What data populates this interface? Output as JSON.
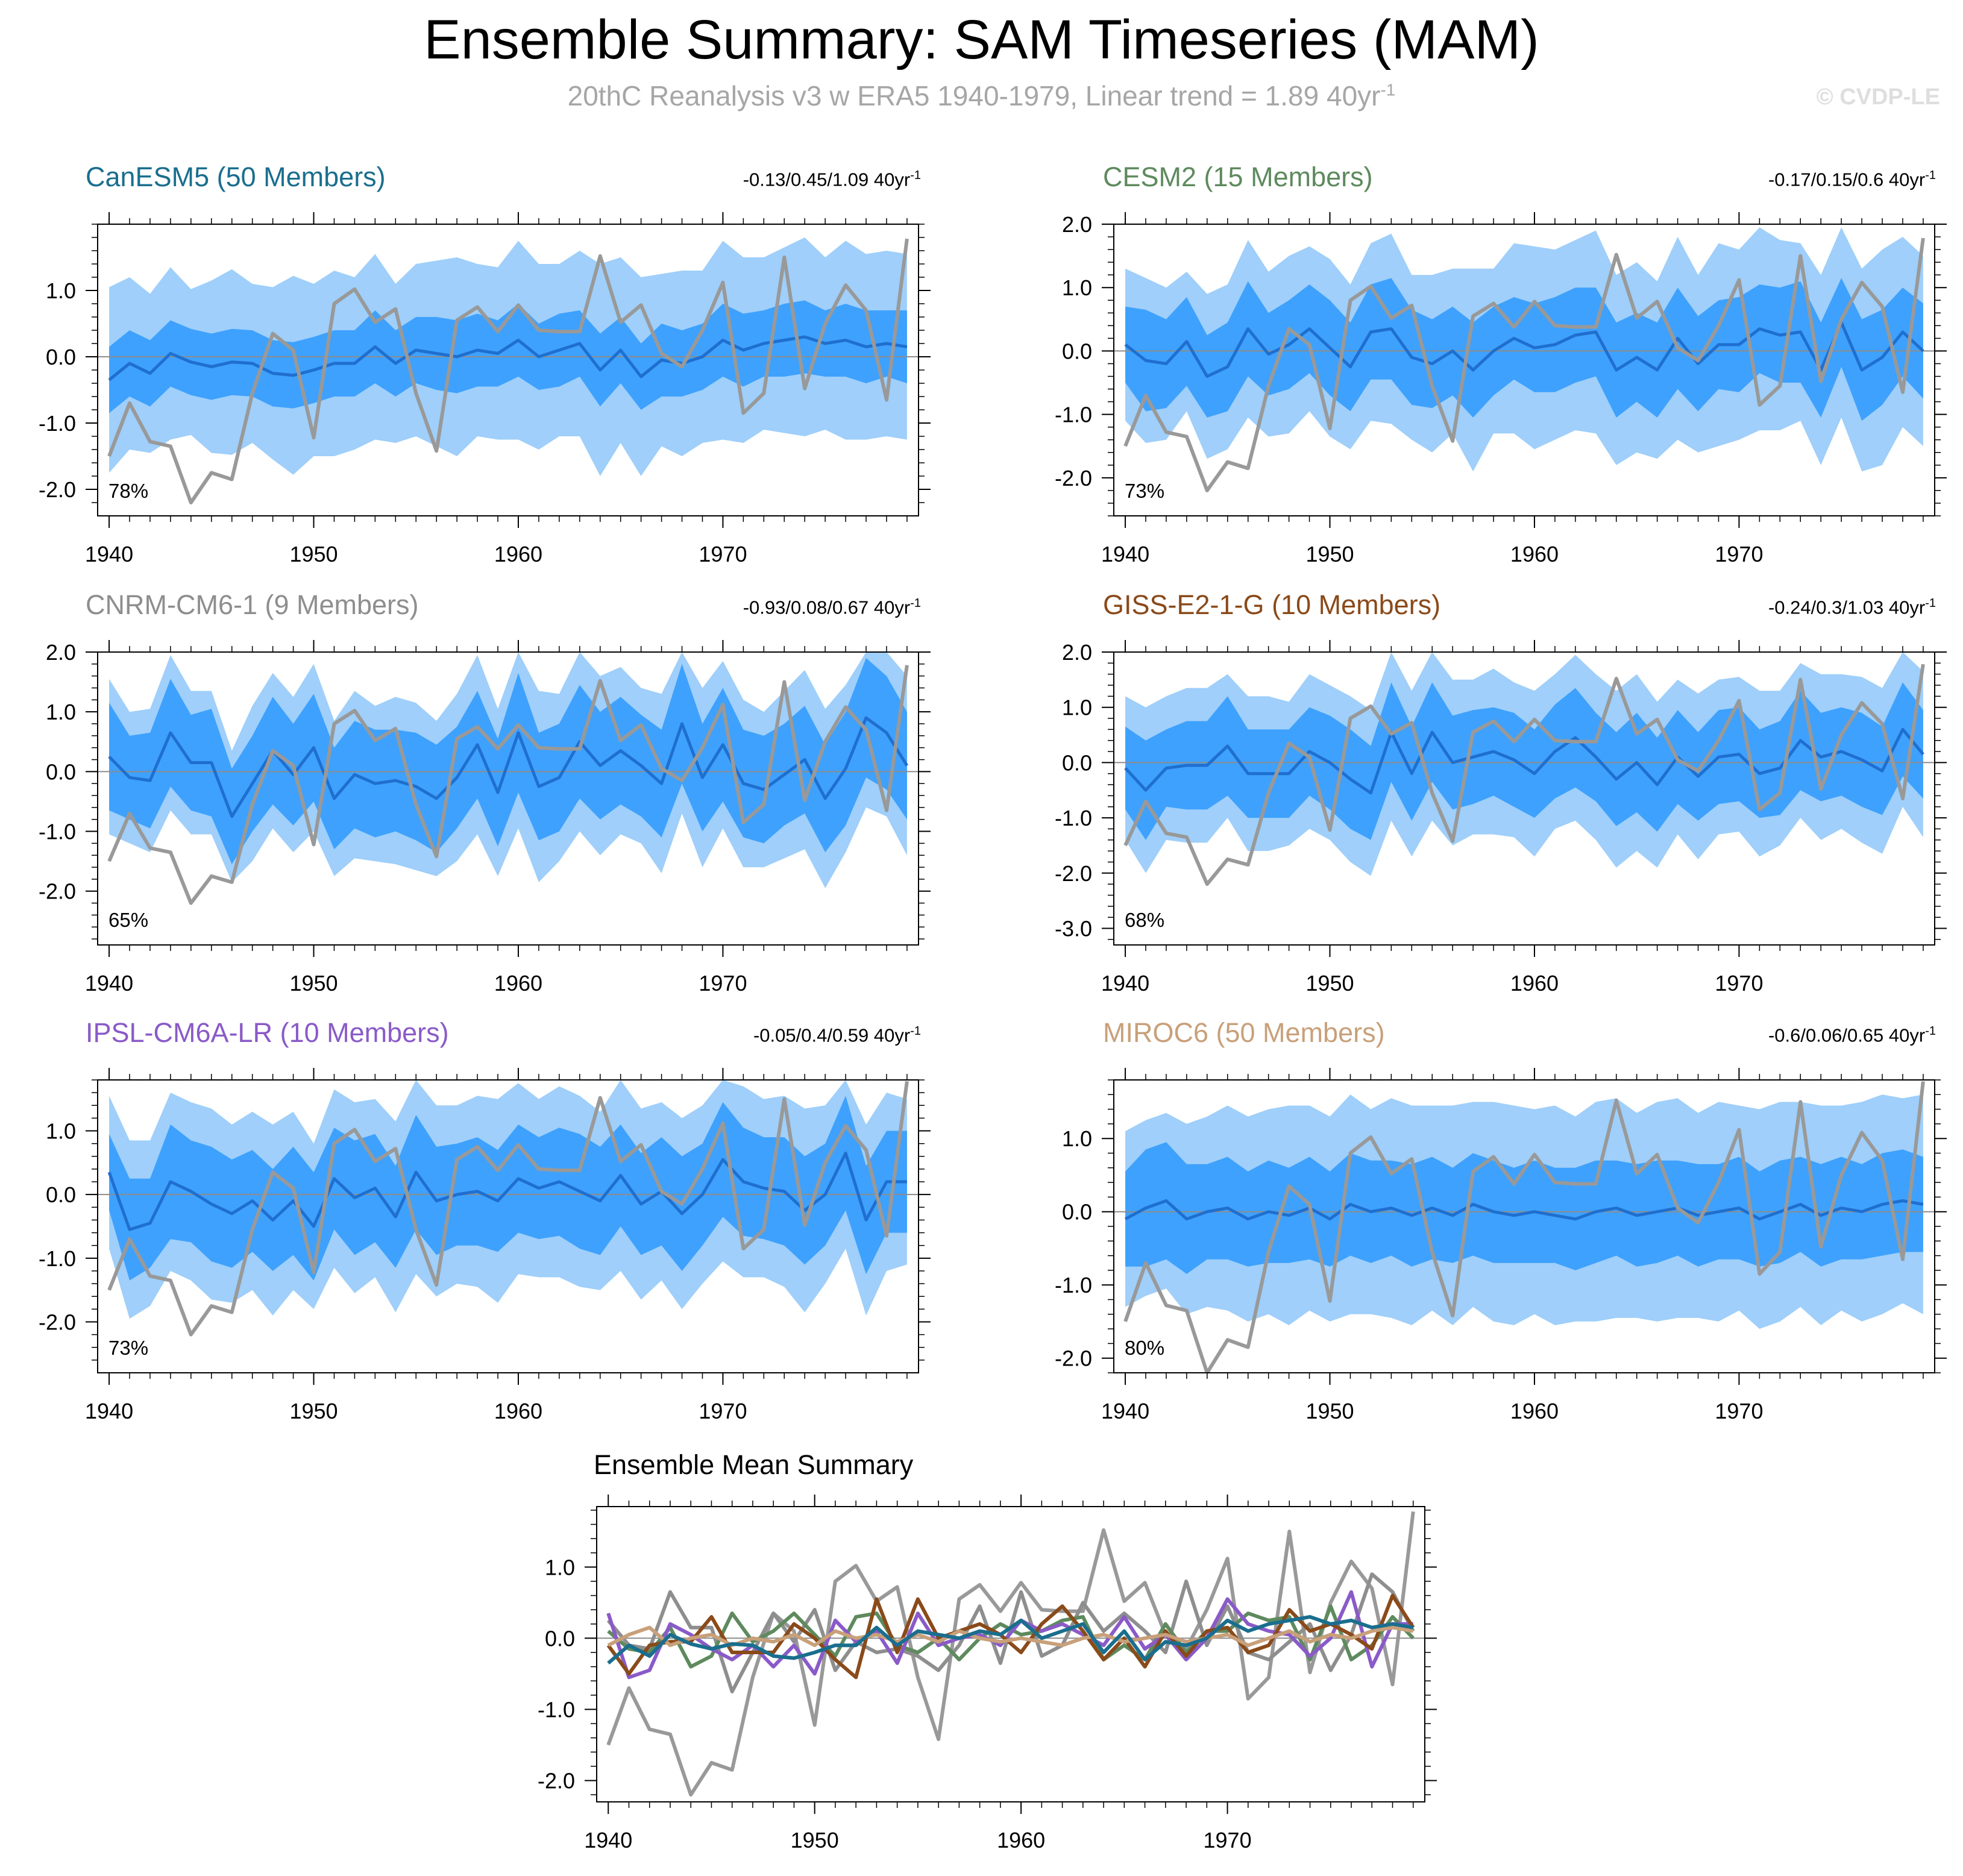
{
  "figure": {
    "title": "Ensemble Summary: SAM Timeseries (MAM)",
    "subtitle_main": "20thC Reanalysis v3 w ERA5 1940-1979, Linear trend = 1.89 40yr",
    "subtitle_sup": "-1",
    "copyright": "© CVDP-LE",
    "trend_unit": " 40yr",
    "trend_sup": "-1"
  },
  "colors": {
    "outer_band": "#9fcffa",
    "inner_band": "#3ea1fd",
    "ens_mean": "#1f6fcf",
    "observed": "#999999",
    "zero_line": "#8c8c8c"
  },
  "chart_data": {
    "type": "line",
    "years": [
      1940,
      1941,
      1942,
      1943,
      1944,
      1945,
      1946,
      1947,
      1948,
      1949,
      1950,
      1951,
      1952,
      1953,
      1954,
      1955,
      1956,
      1957,
      1958,
      1959,
      1960,
      1961,
      1962,
      1963,
      1964,
      1965,
      1966,
      1967,
      1968,
      1969,
      1970,
      1971,
      1972,
      1973,
      1974,
      1975,
      1976,
      1977,
      1978,
      1979
    ],
    "observed": {
      "name": "20thC Reanalysis v3 w ERA5",
      "values": [
        -1.5,
        -0.7,
        -1.28,
        -1.35,
        -2.2,
        -1.75,
        -1.85,
        -0.55,
        0.35,
        0.1,
        -1.22,
        0.8,
        1.02,
        0.52,
        0.72,
        -0.55,
        -1.42,
        0.55,
        0.75,
        0.38,
        0.78,
        0.4,
        0.38,
        0.38,
        1.52,
        0.52,
        0.78,
        0.05,
        -0.15,
        0.4,
        1.12,
        -0.85,
        -0.55,
        1.5,
        -0.48,
        0.5,
        1.08,
        0.7,
        -0.65,
        1.78
      ]
    },
    "panels": [
      {
        "title": "CanESM5 (50 Members)",
        "title_color": "#1a6e8e",
        "trend": "-0.13/0.45/1.09",
        "pct": "78%",
        "ylim": [
          -2.4,
          2.0
        ],
        "yticks": [
          1.0,
          0.0,
          -1.0,
          -2.0
        ],
        "ytick_labels": [
          "1.0",
          "0.0",
          "-1.0",
          "-2.0"
        ],
        "xticks": [
          1940,
          1950,
          1960,
          1970
        ],
        "xtick_labels": [
          "1940",
          "1950",
          "1960",
          "1970"
        ],
        "mean": [
          -0.35,
          -0.1,
          -0.25,
          0.05,
          -0.08,
          -0.15,
          -0.08,
          -0.1,
          -0.25,
          -0.28,
          -0.2,
          -0.1,
          -0.1,
          0.15,
          -0.1,
          0.1,
          0.05,
          0.0,
          0.1,
          0.05,
          0.25,
          0.0,
          0.1,
          0.2,
          -0.2,
          0.1,
          -0.3,
          -0.05,
          -0.1,
          0.0,
          0.25,
          0.1,
          0.2,
          0.25,
          0.3,
          0.2,
          0.25,
          0.15,
          0.2,
          0.15
        ],
        "inner_spread": [
          0.5,
          0.5,
          0.5,
          0.5,
          0.5,
          0.5,
          0.5,
          0.5,
          0.5,
          0.5,
          0.5,
          0.5,
          0.5,
          0.55,
          0.5,
          0.5,
          0.55,
          0.55,
          0.55,
          0.5,
          0.55,
          0.5,
          0.55,
          0.5,
          0.55,
          0.5,
          0.5,
          0.55,
          0.5,
          0.5,
          0.55,
          0.55,
          0.5,
          0.55,
          0.55,
          0.5,
          0.55,
          0.55,
          0.5,
          0.55
        ],
        "outer_spread": [
          1.4,
          1.3,
          1.2,
          1.3,
          1.1,
          1.3,
          1.4,
          1.2,
          1.3,
          1.5,
          1.3,
          1.4,
          1.3,
          1.4,
          1.2,
          1.3,
          1.4,
          1.5,
          1.3,
          1.3,
          1.5,
          1.4,
          1.3,
          1.4,
          1.6,
          1.4,
          1.5,
          1.3,
          1.4,
          1.3,
          1.5,
          1.4,
          1.3,
          1.4,
          1.5,
          1.3,
          1.5,
          1.4,
          1.4,
          1.4
        ]
      },
      {
        "title": "CESM2 (15 Members)",
        "title_color": "#5e8a5e",
        "trend": "-0.17/0.15/0.6",
        "pct": "73%",
        "ylim": [
          -2.6,
          2.0
        ],
        "yticks": [
          2.0,
          1.0,
          0.0,
          -1.0,
          -2.0
        ],
        "ytick_labels": [
          "2.0",
          "1.0",
          "0.0",
          "-1.0",
          "-2.0"
        ],
        "xticks": [
          1940,
          1950,
          1960,
          1970
        ],
        "xtick_labels": [
          "1940",
          "1950",
          "1960",
          "1970"
        ],
        "mean": [
          0.1,
          -0.15,
          -0.2,
          0.15,
          -0.4,
          -0.25,
          0.35,
          -0.05,
          0.1,
          0.35,
          0.05,
          -0.25,
          0.3,
          0.35,
          -0.1,
          -0.2,
          0.0,
          -0.3,
          0.0,
          0.2,
          0.05,
          0.1,
          0.25,
          0.3,
          -0.3,
          -0.1,
          -0.3,
          0.2,
          -0.2,
          0.1,
          0.1,
          0.35,
          0.25,
          0.3,
          -0.3,
          0.45,
          -0.3,
          -0.1,
          0.3,
          0.0
        ],
        "inner_spread": [
          0.6,
          0.8,
          0.7,
          0.7,
          0.65,
          0.7,
          0.75,
          0.65,
          0.7,
          0.7,
          0.75,
          0.7,
          0.75,
          0.8,
          0.75,
          0.7,
          0.7,
          0.75,
          0.7,
          0.65,
          0.7,
          0.75,
          0.75,
          0.7,
          0.75,
          0.7,
          0.75,
          0.8,
          0.75,
          0.7,
          0.75,
          0.7,
          0.75,
          0.8,
          0.75,
          0.7,
          0.8,
          0.75,
          0.7,
          0.75
        ],
        "outer_spread": [
          1.2,
          1.3,
          1.2,
          1.1,
          1.3,
          1.3,
          1.4,
          1.3,
          1.4,
          1.3,
          1.4,
          1.3,
          1.4,
          1.5,
          1.3,
          1.4,
          1.3,
          1.6,
          1.3,
          1.5,
          1.6,
          1.5,
          1.5,
          1.6,
          1.5,
          1.5,
          1.4,
          1.6,
          1.4,
          1.6,
          1.5,
          1.6,
          1.5,
          1.4,
          1.5,
          1.5,
          1.6,
          1.7,
          1.5,
          1.5
        ]
      },
      {
        "title": "CNRM-CM6-1 (9 Members)",
        "title_color": "#8e8e8e",
        "trend": "-0.93/0.08/0.67",
        "pct": "65%",
        "ylim": [
          -2.9,
          2.0
        ],
        "yticks": [
          2.0,
          1.0,
          0.0,
          -1.0,
          -2.0
        ],
        "ytick_labels": [
          "2.0",
          "1.0",
          "0.0",
          "-1.0",
          "-2.0"
        ],
        "xticks": [
          1940,
          1950,
          1960,
          1970
        ],
        "xtick_labels": [
          "1940",
          "1950",
          "1960",
          "1970"
        ],
        "mean": [
          0.25,
          -0.1,
          -0.15,
          0.65,
          0.15,
          0.15,
          -0.75,
          -0.2,
          0.35,
          -0.05,
          0.4,
          -0.45,
          -0.05,
          -0.2,
          -0.15,
          -0.25,
          -0.45,
          -0.1,
          0.45,
          -0.35,
          0.65,
          -0.25,
          -0.1,
          0.5,
          0.1,
          0.35,
          0.1,
          -0.2,
          0.8,
          -0.1,
          0.45,
          -0.2,
          -0.3,
          -0.05,
          0.2,
          -0.45,
          0.05,
          0.9,
          0.65,
          0.1
        ],
        "inner_spread": [
          0.9,
          0.7,
          0.8,
          0.9,
          0.8,
          0.9,
          0.8,
          0.8,
          0.9,
          0.85,
          0.9,
          0.85,
          0.9,
          0.9,
          0.85,
          0.9,
          0.9,
          0.85,
          0.9,
          0.9,
          1.0,
          0.9,
          0.9,
          0.95,
          0.9,
          0.9,
          0.85,
          0.9,
          1.0,
          0.9,
          0.95,
          0.9,
          0.9,
          0.85,
          0.9,
          0.9,
          0.95,
          1.0,
          0.95,
          0.9
        ],
        "outer_spread": [
          1.3,
          1.1,
          1.2,
          1.3,
          1.2,
          1.2,
          1.1,
          1.3,
          1.3,
          1.3,
          1.4,
          1.3,
          1.4,
          1.3,
          1.4,
          1.4,
          1.3,
          1.4,
          1.5,
          1.4,
          1.6,
          1.6,
          1.4,
          1.5,
          1.5,
          1.4,
          1.3,
          1.5,
          1.5,
          1.5,
          1.4,
          1.4,
          1.3,
          1.4,
          1.5,
          1.5,
          1.4,
          1.5,
          1.4,
          1.5
        ]
      },
      {
        "title": "GISS-E2-1-G (10 Members)",
        "title_color": "#8a4a1a",
        "trend": "-0.24/0.3/1.03",
        "pct": "68%",
        "ylim": [
          -3.3,
          2.0
        ],
        "yticks": [
          2.0,
          1.0,
          0.0,
          -1.0,
          -2.0,
          -3.0
        ],
        "ytick_labels": [
          "2.0",
          "1.0",
          "0.0",
          "-1.0",
          "-2.0",
          "-3.0"
        ],
        "xticks": [
          1940,
          1950,
          1960,
          1970
        ],
        "xtick_labels": [
          "1940",
          "1950",
          "1960",
          "1970"
        ],
        "mean": [
          -0.1,
          -0.5,
          -0.1,
          -0.05,
          -0.05,
          0.3,
          -0.2,
          -0.2,
          -0.2,
          0.2,
          0.0,
          -0.3,
          -0.55,
          0.55,
          -0.2,
          0.55,
          0.0,
          0.1,
          0.2,
          0.05,
          -0.2,
          0.2,
          0.45,
          0.1,
          -0.3,
          0.0,
          -0.4,
          0.1,
          -0.25,
          0.1,
          0.15,
          -0.2,
          -0.1,
          0.4,
          0.1,
          0.2,
          0.05,
          -0.15,
          0.6,
          0.15
        ],
        "inner_spread": [
          0.75,
          0.9,
          0.7,
          0.8,
          0.8,
          0.9,
          0.8,
          0.8,
          0.8,
          0.8,
          0.85,
          0.9,
          0.85,
          0.9,
          0.85,
          0.9,
          0.85,
          0.85,
          0.8,
          0.85,
          0.8,
          0.85,
          0.9,
          0.8,
          0.85,
          0.9,
          0.85,
          0.85,
          0.8,
          0.85,
          0.85,
          0.8,
          0.85,
          0.9,
          0.8,
          0.8,
          0.85,
          0.8,
          0.85,
          0.8
        ],
        "outer_spread": [
          1.3,
          1.5,
          1.3,
          1.4,
          1.4,
          1.3,
          1.4,
          1.4,
          1.3,
          1.4,
          1.4,
          1.5,
          1.5,
          1.6,
          1.5,
          1.6,
          1.5,
          1.4,
          1.5,
          1.4,
          1.5,
          1.4,
          1.5,
          1.5,
          1.6,
          1.6,
          1.5,
          1.4,
          1.5,
          1.4,
          1.4,
          1.5,
          1.4,
          1.4,
          1.5,
          1.4,
          1.5,
          1.5,
          1.4,
          1.5
        ]
      },
      {
        "title": "IPSL-CM6A-LR (10 Members)",
        "title_color": "#8a5ac8",
        "trend": "-0.05/0.4/0.59",
        "pct": "73%",
        "ylim": [
          -2.8,
          1.8
        ],
        "yticks": [
          1.0,
          0.0,
          -1.0,
          -2.0
        ],
        "ytick_labels": [
          "1.0",
          "0.0",
          "-1.0",
          "-2.0"
        ],
        "xticks": [
          1940,
          1950,
          1960,
          1970
        ],
        "xtick_labels": [
          "1940",
          "1950",
          "1960",
          "1970"
        ],
        "mean": [
          0.35,
          -0.55,
          -0.45,
          0.2,
          0.05,
          -0.15,
          -0.3,
          -0.1,
          -0.4,
          -0.1,
          -0.5,
          0.25,
          -0.05,
          0.1,
          -0.35,
          0.35,
          -0.1,
          0.0,
          0.05,
          -0.1,
          0.25,
          0.1,
          0.2,
          0.05,
          -0.1,
          0.3,
          -0.15,
          0.05,
          -0.3,
          0.0,
          0.55,
          0.2,
          0.1,
          0.05,
          -0.25,
          0.0,
          0.65,
          -0.4,
          0.2,
          0.2
        ],
        "inner_spread": [
          0.6,
          0.8,
          0.7,
          0.9,
          0.8,
          0.9,
          0.85,
          0.8,
          0.8,
          0.85,
          0.85,
          0.8,
          0.9,
          0.85,
          0.8,
          0.9,
          0.85,
          0.8,
          0.85,
          0.8,
          0.85,
          0.8,
          0.85,
          0.9,
          0.85,
          0.8,
          0.8,
          0.85,
          0.9,
          0.8,
          0.9,
          0.85,
          0.8,
          0.85,
          0.85,
          0.8,
          0.9,
          0.85,
          0.8,
          0.8
        ],
        "outer_spread": [
          1.2,
          1.4,
          1.3,
          1.4,
          1.4,
          1.5,
          1.4,
          1.4,
          1.5,
          1.4,
          1.3,
          1.4,
          1.5,
          1.4,
          1.5,
          1.6,
          1.5,
          1.4,
          1.5,
          1.6,
          1.5,
          1.4,
          1.5,
          1.5,
          1.4,
          1.5,
          1.5,
          1.4,
          1.5,
          1.4,
          1.6,
          1.5,
          1.4,
          1.5,
          1.6,
          1.4,
          1.5,
          1.5,
          1.4,
          1.3
        ]
      },
      {
        "title": "MIROC6 (50 Members)",
        "title_color": "#c8a07a",
        "trend": "-0.6/0.06/0.65",
        "pct": "80%",
        "ylim": [
          -2.2,
          1.8
        ],
        "yticks": [
          1.0,
          0.0,
          -1.0,
          -2.0
        ],
        "ytick_labels": [
          "1.0",
          "0.0",
          "-1.0",
          "-2.0"
        ],
        "xticks": [
          1940,
          1950,
          1960,
          1970
        ],
        "xtick_labels": [
          "1940",
          "1950",
          "1960",
          "1970"
        ],
        "mean": [
          -0.1,
          0.05,
          0.15,
          -0.1,
          0.0,
          0.05,
          -0.1,
          0.0,
          -0.05,
          0.05,
          -0.1,
          0.1,
          0.0,
          0.05,
          -0.05,
          0.05,
          -0.05,
          0.1,
          0.0,
          -0.05,
          0.0,
          -0.05,
          -0.1,
          0.0,
          0.05,
          -0.05,
          0.0,
          0.05,
          -0.05,
          0.0,
          0.05,
          -0.1,
          0.0,
          0.1,
          -0.05,
          0.05,
          0.0,
          0.1,
          0.15,
          0.1
        ],
        "inner_spread": [
          0.65,
          0.8,
          0.8,
          0.75,
          0.65,
          0.7,
          0.65,
          0.7,
          0.65,
          0.7,
          0.65,
          0.7,
          0.7,
          0.65,
          0.7,
          0.7,
          0.65,
          0.7,
          0.7,
          0.65,
          0.7,
          0.65,
          0.7,
          0.7,
          0.65,
          0.7,
          0.7,
          0.65,
          0.7,
          0.65,
          0.7,
          0.65,
          0.7,
          0.65,
          0.7,
          0.7,
          0.65,
          0.7,
          0.7,
          0.65
        ],
        "outer_spread": [
          1.2,
          1.2,
          1.2,
          1.3,
          1.3,
          1.4,
          1.4,
          1.4,
          1.5,
          1.4,
          1.4,
          1.5,
          1.4,
          1.5,
          1.5,
          1.4,
          1.5,
          1.4,
          1.5,
          1.5,
          1.4,
          1.5,
          1.4,
          1.5,
          1.5,
          1.4,
          1.5,
          1.5,
          1.4,
          1.5,
          1.4,
          1.5,
          1.5,
          1.4,
          1.5,
          1.4,
          1.5,
          1.5,
          1.4,
          1.5
        ]
      }
    ],
    "summary": {
      "title": "Ensemble Mean Summary",
      "ylim": [
        -2.3,
        1.85
      ],
      "yticks": [
        1.0,
        0.0,
        -1.0,
        -2.0
      ],
      "ytick_labels": [
        "1.0",
        "0.0",
        "-1.0",
        "-2.0"
      ],
      "xticks": [
        1940,
        1950,
        1960,
        1970
      ],
      "xtick_labels": [
        "1940",
        "1950",
        "1960",
        "1970"
      ],
      "series": [
        {
          "name": "CNRM-CM6-1",
          "color": "#8e8e8e",
          "panel": 2
        },
        {
          "name": "CESM2",
          "color": "#5e8a5e",
          "panel": 1
        },
        {
          "name": "IPSL-CM6A-LR",
          "color": "#8a5ac8",
          "panel": 4
        },
        {
          "name": "GISS-E2-1-G",
          "color": "#8a4a1a",
          "panel": 3
        },
        {
          "name": "MIROC6",
          "color": "#c8a07a",
          "panel": 5
        },
        {
          "name": "CanESM5",
          "color": "#1a6e8e",
          "panel": 0
        }
      ]
    }
  }
}
